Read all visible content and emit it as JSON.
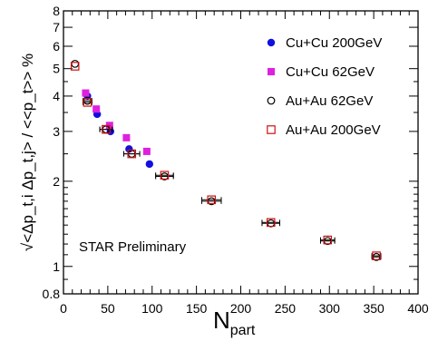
{
  "chart_data": {
    "type": "scatter",
    "xlabel": "N",
    "xlabel_sub": "part",
    "ylabel": "√<Δp_t,i Δp_t,j> / <<p_t>> %",
    "x_range": [
      0,
      400
    ],
    "y_range": [
      0.8,
      8
    ],
    "y_scale": "log",
    "x_ticks": [
      "0",
      "50",
      "100",
      "150",
      "200",
      "250",
      "300",
      "350",
      "400"
    ],
    "y_ticks": [
      "0.8",
      "1",
      "2",
      "3",
      "4",
      "5",
      "6",
      "7",
      "8"
    ],
    "grid": false,
    "legend_position": "top-right",
    "annotation": "STAR Preliminary",
    "series": [
      {
        "name": "Cu+Cu  200GeV",
        "marker": "filled-circle",
        "color": "#1010e0",
        "points": [
          [
            27,
            4.0
          ],
          [
            38,
            3.45
          ],
          [
            53,
            3.0
          ],
          [
            74,
            2.6
          ],
          [
            97,
            2.3
          ]
        ]
      },
      {
        "name": "Cu+Cu  62GeV",
        "marker": "filled-square",
        "color": "#e020e0",
        "points": [
          [
            25,
            4.1
          ],
          [
            37,
            3.6
          ],
          [
            52,
            3.15
          ],
          [
            71,
            2.85
          ],
          [
            94,
            2.55
          ]
        ]
      },
      {
        "name": "Au+Au  62GeV",
        "marker": "open-circle",
        "color": "#000000",
        "points": [
          [
            13,
            5.2
          ],
          [
            27,
            3.85
          ],
          [
            48,
            3.05
          ],
          [
            77,
            2.5
          ],
          [
            114,
            2.08
          ],
          [
            167,
            1.7
          ],
          [
            234,
            1.42
          ],
          [
            298,
            1.23
          ],
          [
            353,
            1.08
          ]
        ],
        "x_err": [
          0,
          5,
          7,
          9,
          10,
          11,
          10,
          8,
          5
        ]
      },
      {
        "name": "Au+Au 200GeV",
        "marker": "open-square",
        "color": "#d01010",
        "points": [
          [
            13,
            5.1
          ],
          [
            27,
            3.8
          ],
          [
            48,
            3.05
          ],
          [
            77,
            2.5
          ],
          [
            114,
            2.1
          ],
          [
            167,
            1.72
          ],
          [
            234,
            1.43
          ],
          [
            298,
            1.24
          ],
          [
            353,
            1.09
          ]
        ],
        "x_err": [
          0,
          5,
          7,
          9,
          10,
          11,
          10,
          8,
          5
        ]
      }
    ]
  }
}
